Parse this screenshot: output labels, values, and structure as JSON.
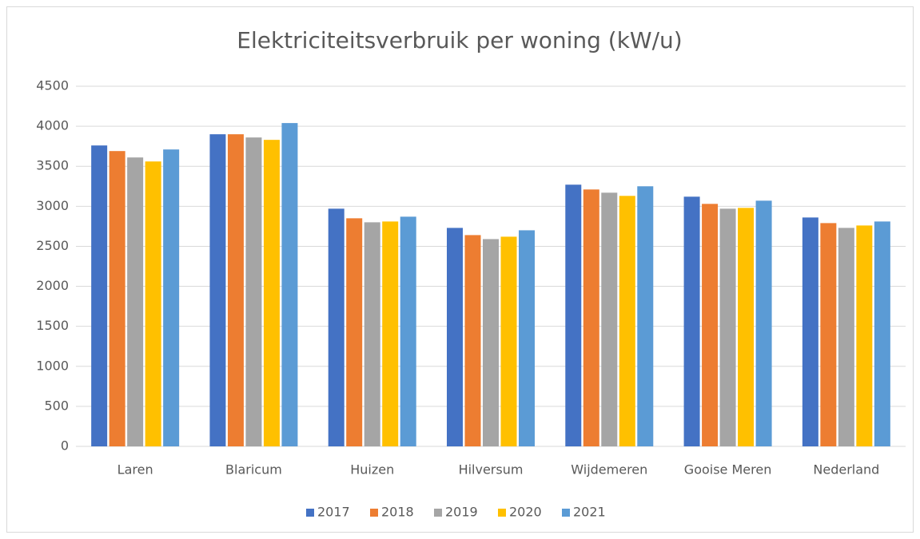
{
  "chart_data": {
    "type": "bar",
    "title": "Elektriciteitsverbruik per woning (kW/u)",
    "categories": [
      "Laren",
      "Blaricum",
      "Huizen",
      "Hilversum",
      "Wijdemeren",
      "Gooise Meren",
      "Nederland"
    ],
    "series": [
      {
        "name": "2017",
        "color": "#4472c4",
        "values": [
          3760,
          3900,
          2970,
          2730,
          3270,
          3120,
          2860
        ]
      },
      {
        "name": "2018",
        "color": "#ed7d31",
        "values": [
          3690,
          3900,
          2850,
          2640,
          3210,
          3030,
          2790
        ]
      },
      {
        "name": "2019",
        "color": "#a5a5a5",
        "values": [
          3610,
          3860,
          2800,
          2590,
          3170,
          2970,
          2730
        ]
      },
      {
        "name": "2020",
        "color": "#ffc000",
        "values": [
          3560,
          3830,
          2810,
          2620,
          3130,
          2980,
          2760
        ]
      },
      {
        "name": "2021",
        "color": "#5b9bd5",
        "values": [
          3710,
          4040,
          2870,
          2700,
          3250,
          3070,
          2810
        ]
      }
    ],
    "ylim": [
      0,
      4500
    ],
    "yticks": [
      0,
      500,
      1000,
      1500,
      2000,
      2500,
      3000,
      3500,
      4000,
      4500
    ],
    "grid": true,
    "legend": "bottom"
  }
}
